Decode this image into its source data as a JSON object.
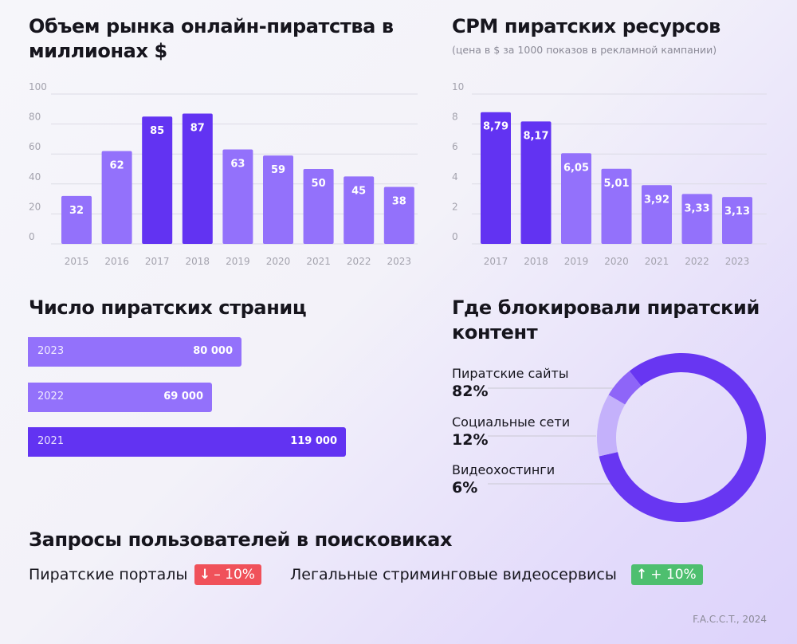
{
  "colors": {
    "bar_regular": "#9371fb",
    "bar_highlight": "#6233f2",
    "donut_main": "#6836f2",
    "donut_mid": "#c4b1fb",
    "donut_small": "#8e65f8",
    "axis_text": "#a3a2ad",
    "grid": "#dcdbe5",
    "red": "#f0515a",
    "green": "#4ebf6f",
    "leader": "#c9c8d2"
  },
  "charts": {
    "market": {
      "title": "Объем рынка онлайн-пиратства в миллионах $"
    },
    "cpm": {
      "title": "CPM пиратских ресурсов",
      "subtitle": "(цена в $ за 1000 показов в рекламной кампании)"
    },
    "pages": {
      "title": "Число пиратских страниц"
    },
    "blocking": {
      "title": "Где блокировали пиратский контент"
    }
  },
  "chart_data": [
    {
      "id": "market",
      "type": "bar",
      "title": "Объем рынка онлайн-пиратства в миллионах $",
      "categories": [
        "2015",
        "2016",
        "2017",
        "2018",
        "2019",
        "2020",
        "2021",
        "2022",
        "2023"
      ],
      "values": [
        32,
        62,
        85,
        87,
        63,
        59,
        50,
        45,
        38
      ],
      "labels": [
        "32",
        "62",
        "85",
        "87",
        "63",
        "59",
        "50",
        "45",
        "38"
      ],
      "highlight": [
        false,
        false,
        true,
        true,
        false,
        false,
        false,
        false,
        false
      ],
      "ylim": [
        0,
        100
      ],
      "yticks": [
        0,
        20,
        40,
        60,
        80,
        100
      ],
      "grid": true
    },
    {
      "id": "cpm",
      "type": "bar",
      "title": "CPM пиратских ресурсов",
      "subtitle": "(цена в $ за 1000 показов в рекламной кампании)",
      "categories": [
        "2017",
        "2018",
        "2019",
        "2020",
        "2021",
        "2022",
        "2023"
      ],
      "values": [
        8.79,
        8.17,
        6.05,
        5.01,
        3.92,
        3.33,
        3.13
      ],
      "labels": [
        "8,79",
        "8,17",
        "6,05",
        "5,01",
        "3,92",
        "3,33",
        "3,13"
      ],
      "highlight": [
        true,
        true,
        false,
        false,
        false,
        false,
        false
      ],
      "ylim": [
        0,
        10
      ],
      "yticks": [
        0,
        2,
        4,
        6,
        8,
        10
      ],
      "grid": true
    },
    {
      "id": "pages",
      "type": "bar",
      "orientation": "horizontal",
      "title": "Число пиратских страниц",
      "categories": [
        "2023",
        "2022",
        "2021"
      ],
      "values": [
        80000,
        69000,
        119000
      ],
      "labels": [
        "80 000",
        "69 000",
        "119 000"
      ],
      "highlight": [
        false,
        false,
        true
      ]
    },
    {
      "id": "blocking",
      "type": "pie",
      "title": "Где блокировали пиратский контент",
      "categories": [
        "Пиратские сайты",
        "Социальные сети",
        "Видеохостинги"
      ],
      "values": [
        82,
        12,
        6
      ],
      "labels": [
        "82%",
        "12%",
        "6%"
      ]
    }
  ],
  "search": {
    "title": "Запросы пользователей в поисковиках",
    "items": [
      {
        "label": "Пиратские порталы",
        "arrow": "↓",
        "change": "– 10%",
        "trend": "down"
      },
      {
        "label": "Легальные стриминговые видеосервисы",
        "arrow": "↑",
        "change": "+ 10%",
        "trend": "up"
      }
    ]
  },
  "source": "F.A.C.C.T., 2024"
}
